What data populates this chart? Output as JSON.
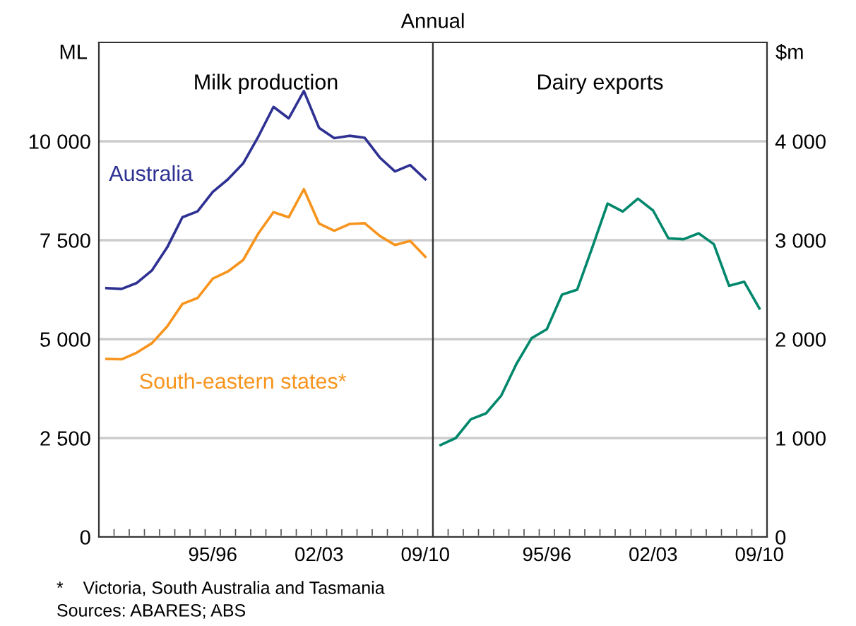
{
  "chart_data": [
    {
      "type": "line",
      "title": "Milk production",
      "subtitle": "Annual",
      "ylabel": "ML",
      "categories": [
        null,
        null,
        null,
        null,
        null,
        null,
        null,
        "95/96",
        null,
        null,
        null,
        null,
        null,
        null,
        "02/03",
        null,
        null,
        null,
        null,
        null,
        null,
        "09/10"
      ],
      "series": [
        {
          "name": "Australia",
          "color": "#2e3192",
          "values": [
            6290,
            6270,
            6420,
            6740,
            7320,
            8080,
            8230,
            8720,
            9040,
            9440,
            10120,
            10870,
            10580,
            11270,
            10340,
            10080,
            10140,
            10090,
            9590,
            9240,
            9400,
            9040
          ]
        },
        {
          "name": "South-eastern states*",
          "color": "#f7941d",
          "values": [
            4500,
            4490,
            4660,
            4900,
            5320,
            5890,
            6040,
            6530,
            6710,
            7000,
            7670,
            8210,
            8080,
            8790,
            7920,
            7740,
            7910,
            7930,
            7610,
            7380,
            7480,
            7080
          ]
        }
      ],
      "ylim": [
        0,
        12500
      ],
      "yticks": [
        0,
        {
          "value": 2500,
          "label": "2 500"
        },
        {
          "value": 5000,
          "label": "5 000"
        },
        {
          "value": 7500,
          "label": "7 500"
        },
        {
          "value": 10000,
          "label": "10 000"
        }
      ],
      "grid": "y",
      "legend": false,
      "annotations": [
        "*    Victoria, South Australia and Tasmania",
        "Sources: ABARES; ABS"
      ]
    },
    {
      "type": "line",
      "title": "Dairy exports",
      "ylabel": "$m",
      "categories": [
        null,
        null,
        null,
        null,
        null,
        null,
        null,
        "95/96",
        null,
        null,
        null,
        null,
        null,
        null,
        "02/03",
        null,
        null,
        null,
        null,
        null,
        null,
        "09/10"
      ],
      "series": [
        {
          "color": "#00876c",
          "values": [
            930,
            1000,
            1190,
            1250,
            1430,
            1750,
            2010,
            2100,
            2450,
            2500,
            2930,
            3370,
            3290,
            3420,
            3300,
            3020,
            3010,
            3070,
            2960,
            2540,
            2580,
            2310
          ]
        }
      ],
      "ylim": [
        0,
        5000
      ],
      "yticks": [
        0,
        {
          "value": 1000,
          "label": "1 000"
        },
        {
          "value": 2000,
          "label": "2 000"
        },
        {
          "value": 3000,
          "label": "3 000"
        },
        {
          "value": 4000,
          "label": "4 000"
        }
      ],
      "grid": "y",
      "legend": false
    }
  ]
}
